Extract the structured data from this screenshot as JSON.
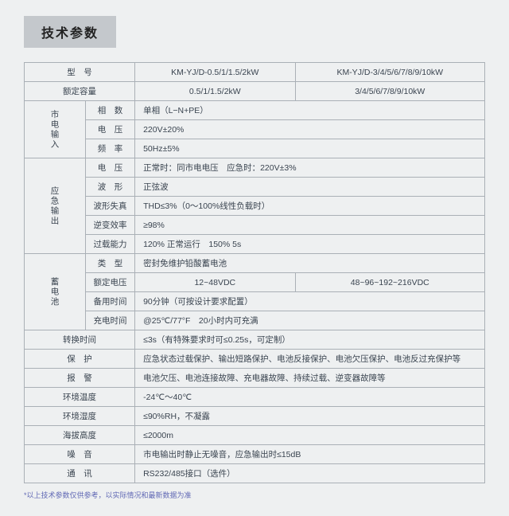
{
  "title": "技术参数",
  "footnote": "*以上技术参数仅供参考，以实际情况和最新数据为准",
  "header": {
    "model_label": "型　号",
    "model_a": "KM-YJ/D-0.5/1/1.5/2kW",
    "model_b": "KM-YJ/D-3/4/5/6/7/8/9/10kW",
    "capacity_label": "额定容量",
    "capacity_a": "0.5/1/1.5/2kW",
    "capacity_b": "3/4/5/6/7/8/9/10kW"
  },
  "mains": {
    "group": "市电输入",
    "phase_l": "相　数",
    "phase_v": "单相（L−N+PE）",
    "volt_l": "电　压",
    "volt_v": "220V±20%",
    "freq_l": "频　率",
    "freq_v": "50Hz±5%"
  },
  "emerg": {
    "group": "应急输出",
    "volt_l": "电　压",
    "volt_v": "正常时：同市电电压　应急时：220V±3%",
    "wave_l": "波　形",
    "wave_v": "正弦波",
    "dist_l": "波形失真",
    "dist_v": "THD≤3%（0～100%线性负载时）",
    "eff_l": "逆变效率",
    "eff_v": "≥98%",
    "over_l": "过载能力",
    "over_v": "120% 正常运行　150% 5s"
  },
  "batt": {
    "group": "蓄电池",
    "type_l": "类　型",
    "type_v": "密封免维护铅酸蓄电池",
    "rated_l": "额定电压",
    "rated_a": "12~48VDC",
    "rated_b": "48~96~192~216VDC",
    "bkup_l": "备用时间",
    "bkup_v": "90分钟（可按设计要求配置）",
    "chg_l": "充电时间",
    "chg_v": "@25℃/77°F　20小时内可充满"
  },
  "rows": {
    "switch_l": "转换时间",
    "switch_v": "≤3s（有特殊要求时可≤0.25s，可定制）",
    "prot_l": "保　护",
    "prot_v": "应急状态过载保护、输出短路保护、电池反接保护、电池欠压保护、电池反过充保护等",
    "alarm_l": "报　警",
    "alarm_v": "电池欠压、电池连接故障、充电器故障、持续过载、逆变器故障等",
    "temp_l": "环境温度",
    "temp_v": "-24℃～40℃",
    "hum_l": "环境湿度",
    "hum_v": "≤90%RH，不凝露",
    "alt_l": "海拔高度",
    "alt_v": "≤2000m",
    "noise_l": "噪　音",
    "noise_v": "市电输出时静止无噪音，应急输出时≤15dB",
    "comm_l": "通　讯",
    "comm_v": "RS232/485接口（选件）"
  }
}
